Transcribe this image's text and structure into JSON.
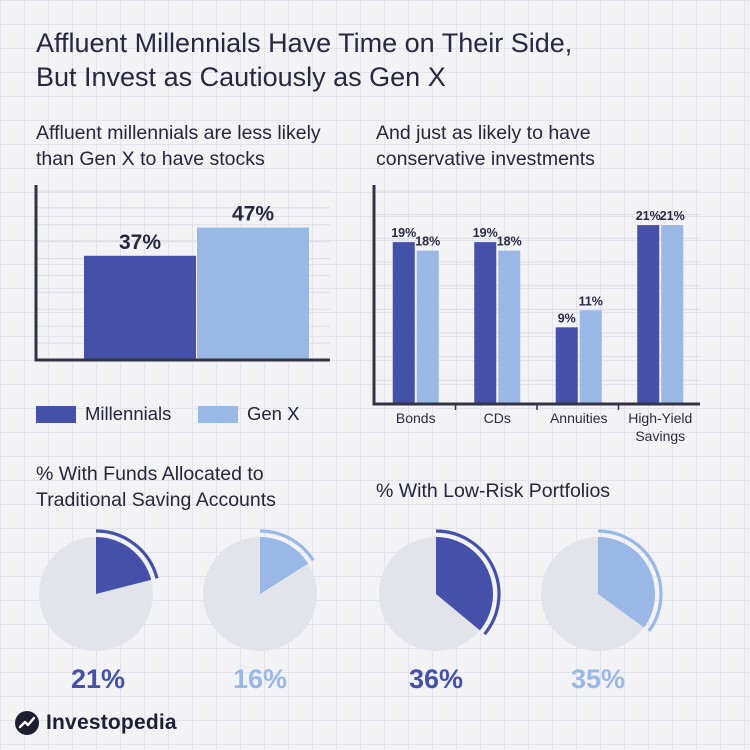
{
  "title_line1": "Affluent Millennials Have Time on Their Side,",
  "title_line2": "But Invest as Cautiously as Gen X",
  "left_subtitle_line1": "Affluent millennials are less likely",
  "left_subtitle_line2": "than Gen X to have stocks",
  "right_subtitle_line1": "And just as likely to have",
  "right_subtitle_line2": "conservative investments",
  "pie_left_subtitle_line1": "% With Funds Allocated to",
  "pie_left_subtitle_line2": "Traditional Saving Accounts",
  "pie_right_subtitle": "% With Low-Risk Portfolios",
  "legend": {
    "millennials": "Millennials",
    "genx": "Gen X"
  },
  "brand": "Investopedia",
  "colors": {
    "millennials": "#4550a8",
    "genx": "#99b8e5",
    "pie_base": "#e3e3ea",
    "axis": "#333344"
  },
  "chart_data": [
    {
      "type": "bar",
      "categories": [
        ""
      ],
      "series": [
        {
          "name": "Millennials",
          "values": [
            37
          ],
          "labels": [
            "37%"
          ]
        },
        {
          "name": "Gen X",
          "values": [
            47
          ],
          "labels": [
            "47%"
          ]
        }
      ],
      "ylim": [
        0,
        60
      ],
      "grid": true
    },
    {
      "type": "bar",
      "categories": [
        "Bonds",
        "CDs",
        "Annuities",
        "High-Yield Savings"
      ],
      "category_lines": [
        [
          "Bonds"
        ],
        [
          "CDs"
        ],
        [
          "Annuities"
        ],
        [
          "High-Yield",
          "Savings"
        ]
      ],
      "series": [
        {
          "name": "Millennials",
          "values": [
            19,
            19,
            9,
            21
          ],
          "labels": [
            "19%",
            "19%",
            "9%",
            "21%"
          ]
        },
        {
          "name": "Gen X",
          "values": [
            18,
            18,
            11,
            21
          ],
          "labels": [
            "18%",
            "18%",
            "11%",
            "21%"
          ]
        }
      ],
      "ylim": [
        0,
        25
      ],
      "grid": true
    },
    {
      "type": "pie",
      "pies": [
        {
          "series": "Millennials",
          "value": 21,
          "label": "21%"
        },
        {
          "series": "Gen X",
          "value": 16,
          "label": "16%"
        }
      ]
    },
    {
      "type": "pie",
      "pies": [
        {
          "series": "Millennials",
          "value": 36,
          "label": "36%"
        },
        {
          "series": "Gen X",
          "value": 35,
          "label": "35%"
        }
      ]
    }
  ]
}
